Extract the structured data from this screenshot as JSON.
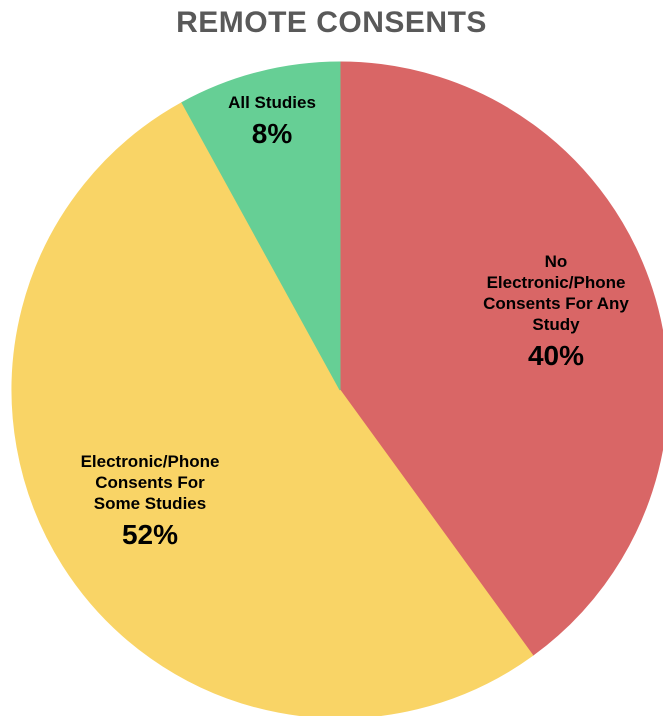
{
  "chart_data": {
    "type": "pie",
    "title": "REMOTE CONSENTS",
    "slices": [
      {
        "label_lines": [
          "No",
          "Electronic/Phone",
          "Consents For Any",
          "Study"
        ],
        "value": 40,
        "display": "40%",
        "color": "#d96666"
      },
      {
        "label_lines": [
          "Electronic/Phone",
          "Consents For",
          "Some Studies"
        ],
        "value": 52,
        "display": "52%",
        "color": "#f9d466"
      },
      {
        "label_lines": [
          "All Studies"
        ],
        "value": 8,
        "display": "8%",
        "color": "#66cf95"
      }
    ],
    "legend": "none",
    "grid": false
  }
}
